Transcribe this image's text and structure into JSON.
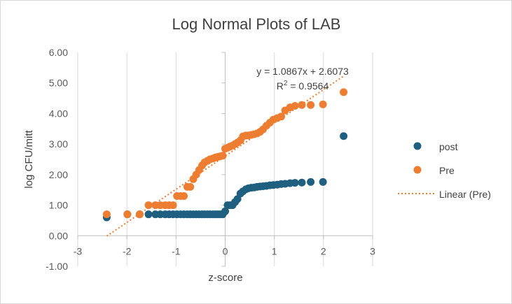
{
  "chart_data": {
    "type": "scatter",
    "title": "Log Normal Plots of LAB",
    "xlabel": "z-score",
    "ylabel": "log CFU/mitt",
    "xlim": [
      -3,
      3
    ],
    "ylim": [
      -1,
      6
    ],
    "x_ticks": [
      "-3",
      "-2",
      "-1",
      "0",
      "1",
      "2",
      "3"
    ],
    "y_ticks": [
      "-1.00",
      "0.00",
      "1.00",
      "2.00",
      "3.00",
      "4.00",
      "5.00",
      "6.00"
    ],
    "grid": "vertical major gridlines",
    "legend_position": "right",
    "series": [
      {
        "name": "post",
        "color": "#1f5f7f",
        "points": [
          [
            -2.41,
            0.6
          ],
          [
            -1.99,
            0.7
          ],
          [
            -1.74,
            0.7
          ],
          [
            -1.56,
            0.7
          ],
          [
            -1.42,
            0.7
          ],
          [
            -1.32,
            0.7
          ],
          [
            -1.22,
            0.7
          ],
          [
            -1.14,
            0.7
          ],
          [
            -1.06,
            0.7
          ],
          [
            -0.98,
            0.7
          ],
          [
            -0.91,
            0.7
          ],
          [
            -0.84,
            0.7
          ],
          [
            -0.77,
            0.7
          ],
          [
            -0.71,
            0.7
          ],
          [
            -0.65,
            0.7
          ],
          [
            -0.59,
            0.7
          ],
          [
            -0.53,
            0.7
          ],
          [
            -0.47,
            0.7
          ],
          [
            -0.42,
            0.7
          ],
          [
            -0.36,
            0.7
          ],
          [
            -0.31,
            0.7
          ],
          [
            -0.25,
            0.7
          ],
          [
            -0.2,
            0.7
          ],
          [
            -0.15,
            0.7
          ],
          [
            -0.1,
            0.7
          ],
          [
            -0.05,
            0.7
          ],
          [
            0.0,
            0.8
          ],
          [
            0.05,
            1.0
          ],
          [
            0.1,
            1.0
          ],
          [
            0.15,
            1.0
          ],
          [
            0.2,
            1.1
          ],
          [
            0.25,
            1.2
          ],
          [
            0.31,
            1.38
          ],
          [
            0.36,
            1.45
          ],
          [
            0.42,
            1.52
          ],
          [
            0.47,
            1.55
          ],
          [
            0.53,
            1.57
          ],
          [
            0.59,
            1.58
          ],
          [
            0.65,
            1.6
          ],
          [
            0.71,
            1.61
          ],
          [
            0.77,
            1.62
          ],
          [
            0.84,
            1.63
          ],
          [
            0.91,
            1.65
          ],
          [
            0.98,
            1.66
          ],
          [
            1.06,
            1.67
          ],
          [
            1.14,
            1.69
          ],
          [
            1.22,
            1.7
          ],
          [
            1.32,
            1.72
          ],
          [
            1.42,
            1.73
          ],
          [
            1.56,
            1.74
          ],
          [
            1.74,
            1.76
          ],
          [
            1.99,
            1.76
          ],
          [
            2.41,
            3.26
          ]
        ]
      },
      {
        "name": "Pre",
        "color": "#ed7d31",
        "points": [
          [
            -2.41,
            0.7
          ],
          [
            -1.99,
            0.7
          ],
          [
            -1.74,
            0.7
          ],
          [
            -1.56,
            1.0
          ],
          [
            -1.42,
            1.0
          ],
          [
            -1.32,
            1.0
          ],
          [
            -1.22,
            1.0
          ],
          [
            -1.14,
            1.0
          ],
          [
            -1.06,
            1.0
          ],
          [
            -0.98,
            1.3
          ],
          [
            -0.91,
            1.3
          ],
          [
            -0.84,
            1.3
          ],
          [
            -0.77,
            1.6
          ],
          [
            -0.71,
            1.6
          ],
          [
            -0.65,
            1.85
          ],
          [
            -0.59,
            2.0
          ],
          [
            -0.53,
            2.15
          ],
          [
            -0.47,
            2.3
          ],
          [
            -0.42,
            2.4
          ],
          [
            -0.36,
            2.45
          ],
          [
            -0.31,
            2.5
          ],
          [
            -0.25,
            2.53
          ],
          [
            -0.2,
            2.56
          ],
          [
            -0.15,
            2.58
          ],
          [
            -0.1,
            2.6
          ],
          [
            -0.05,
            2.62
          ],
          [
            0.0,
            2.85
          ],
          [
            0.05,
            2.88
          ],
          [
            0.1,
            2.92
          ],
          [
            0.15,
            2.95
          ],
          [
            0.2,
            3.0
          ],
          [
            0.25,
            3.05
          ],
          [
            0.31,
            3.12
          ],
          [
            0.36,
            3.25
          ],
          [
            0.42,
            3.28
          ],
          [
            0.47,
            3.28
          ],
          [
            0.53,
            3.3
          ],
          [
            0.59,
            3.32
          ],
          [
            0.65,
            3.35
          ],
          [
            0.71,
            3.4
          ],
          [
            0.77,
            3.48
          ],
          [
            0.84,
            3.6
          ],
          [
            0.91,
            3.7
          ],
          [
            0.98,
            3.8
          ],
          [
            1.06,
            3.85
          ],
          [
            1.14,
            3.9
          ],
          [
            1.22,
            4.1
          ],
          [
            1.32,
            4.2
          ],
          [
            1.42,
            4.25
          ],
          [
            1.56,
            4.28
          ],
          [
            1.74,
            4.28
          ],
          [
            1.99,
            4.3
          ],
          [
            2.41,
            4.7
          ]
        ]
      }
    ],
    "trendline": {
      "name": "Linear (Pre)",
      "series": "Pre",
      "slope": 1.0867,
      "intercept": 2.6073,
      "x_range": [
        -2.41,
        2.41
      ],
      "color": "#ed7d31",
      "equation_label": "y = 1.0867x + 2.6073",
      "r2_prefix": "R",
      "r2_sup": "2",
      "r2_value": " = 0.9564"
    }
  }
}
